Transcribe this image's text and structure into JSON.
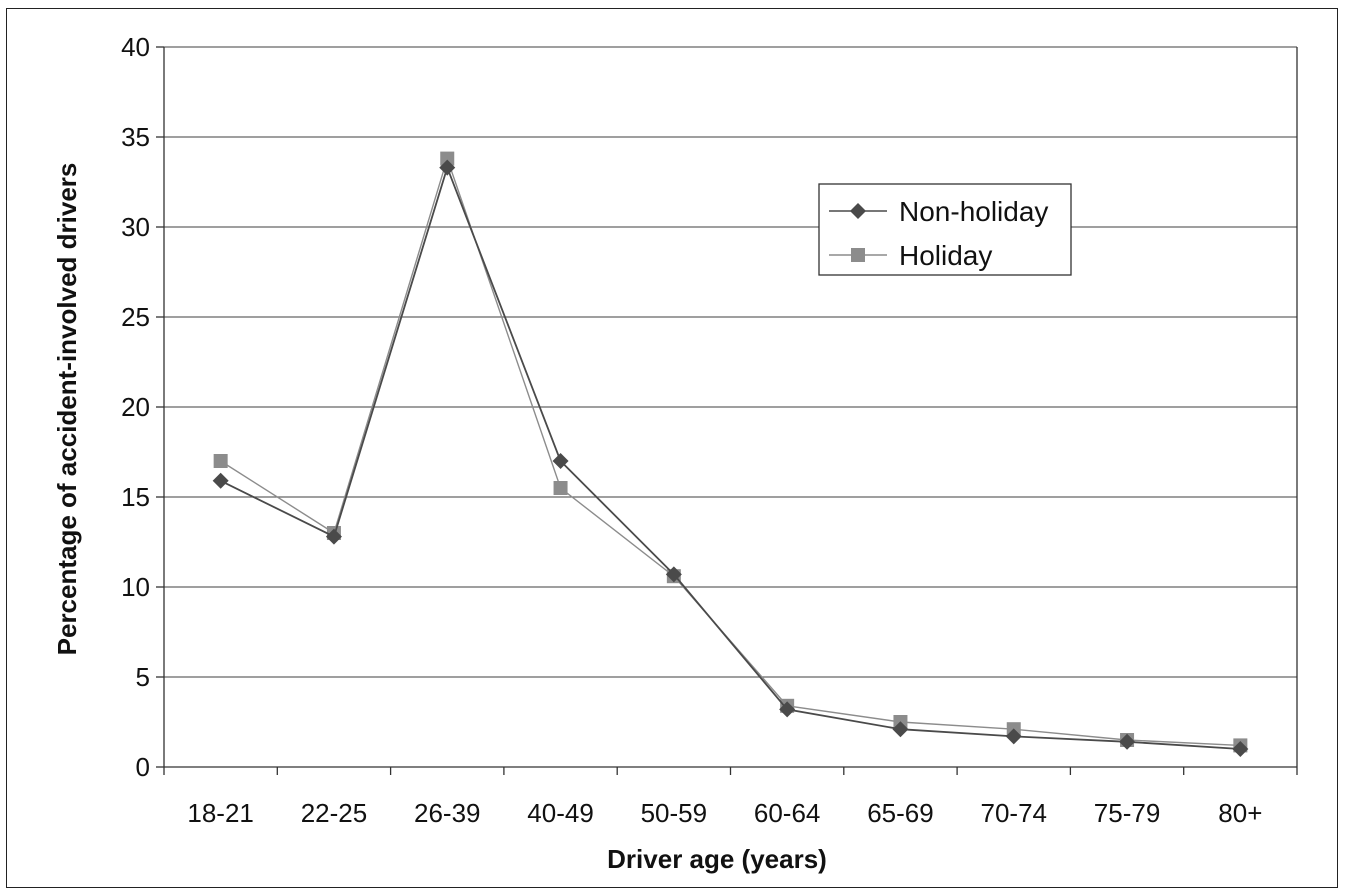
{
  "chart_data": {
    "type": "line",
    "categories": [
      "18-21",
      "22-25",
      "26-39",
      "40-49",
      "50-59",
      "60-64",
      "65-69",
      "70-74",
      "75-79",
      "80+"
    ],
    "series": [
      {
        "name": "Non-holiday",
        "marker": "diamond",
        "color": "#4a4a4a",
        "values": [
          15.9,
          12.8,
          33.3,
          17.0,
          10.7,
          3.2,
          2.1,
          1.7,
          1.4,
          1.0
        ]
      },
      {
        "name": "Holiday",
        "marker": "square",
        "color": "#8c8c8c",
        "values": [
          17.0,
          13.0,
          33.8,
          15.5,
          10.6,
          3.4,
          2.5,
          2.1,
          1.5,
          1.2
        ]
      }
    ],
    "xlabel": "Driver age (years)",
    "ylabel": "Percentage of accident-involved drivers",
    "ylim": [
      0,
      40
    ],
    "yticks": [
      0,
      5,
      10,
      15,
      20,
      25,
      30,
      35,
      40
    ],
    "grid": true,
    "legend_position": "top-right"
  }
}
